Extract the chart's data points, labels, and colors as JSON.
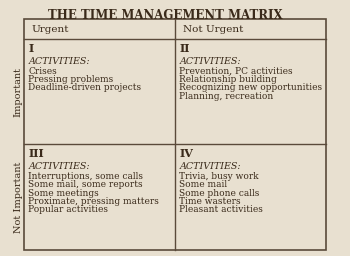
{
  "title": "THE TIME MANAGEMENT MATRIX",
  "bg_color": "#e8e0d0",
  "border_color": "#5a4a3a",
  "text_color": "#3a2a1a",
  "col_headers": [
    "Urgent",
    "Not Urgent"
  ],
  "row_headers": [
    "Important",
    "Not Important"
  ],
  "quadrants": [
    {
      "roman": "I",
      "activities_label": "ACTIVITIES:",
      "items": [
        "Crises",
        "Pressing problems",
        "Deadline-driven projects"
      ]
    },
    {
      "roman": "II",
      "activities_label": "ACTIVITIES:",
      "items": [
        "Prevention, PC activities",
        "Relationship building",
        "Recognizing new opportunities",
        "Planning, recreation"
      ]
    },
    {
      "roman": "III",
      "activities_label": "ACTIVITIES:",
      "items": [
        "Interruptions, some calls",
        "Some mail, some reports",
        "Some meetings",
        "Proximate, pressing matters",
        "Popular activities"
      ]
    },
    {
      "roman": "IV",
      "activities_label": "ACTIVITIES:",
      "items": [
        "Trivia, busy work",
        "Some mail",
        "Some phone calls",
        "Time wasters",
        "Pleasant activities"
      ]
    }
  ],
  "title_fontsize": 8.5,
  "header_fontsize": 7.5,
  "roman_fontsize": 8,
  "activities_fontsize": 6.8,
  "item_fontsize": 6.5,
  "rowlabel_fontsize": 7,
  "fig_width": 3.5,
  "fig_height": 2.56,
  "dpi": 100
}
